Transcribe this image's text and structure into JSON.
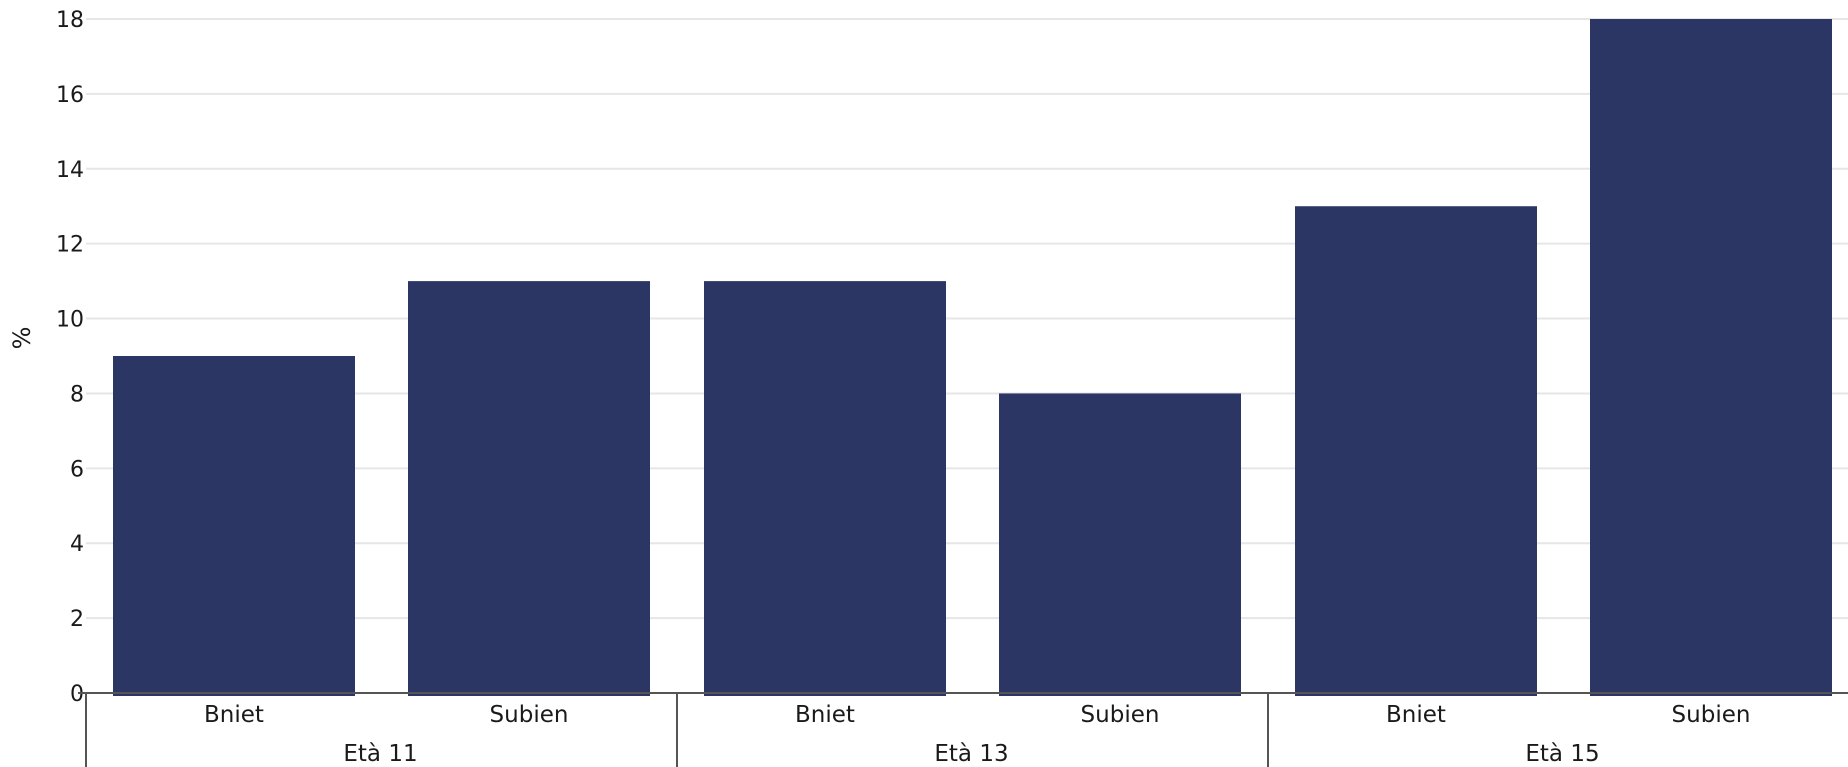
{
  "chart_data": {
    "type": "bar",
    "title": "",
    "xlabel": "",
    "ylabel": "%",
    "ylim": [
      0,
      18
    ],
    "yticks": [
      0,
      2,
      4,
      6,
      8,
      10,
      12,
      14,
      16,
      18
    ],
    "grid": true,
    "legend": "none",
    "bar_color": "#2b3664",
    "groups": [
      {
        "label": "Età 11",
        "categories": [
          "Bniet",
          "Subien"
        ],
        "values": [
          9,
          11
        ]
      },
      {
        "label": "Età 13",
        "categories": [
          "Bniet",
          "Subien"
        ],
        "values": [
          11,
          8
        ]
      },
      {
        "label": "Età 15",
        "categories": [
          "Bniet",
          "Subien"
        ],
        "values": [
          13,
          18
        ]
      }
    ]
  }
}
